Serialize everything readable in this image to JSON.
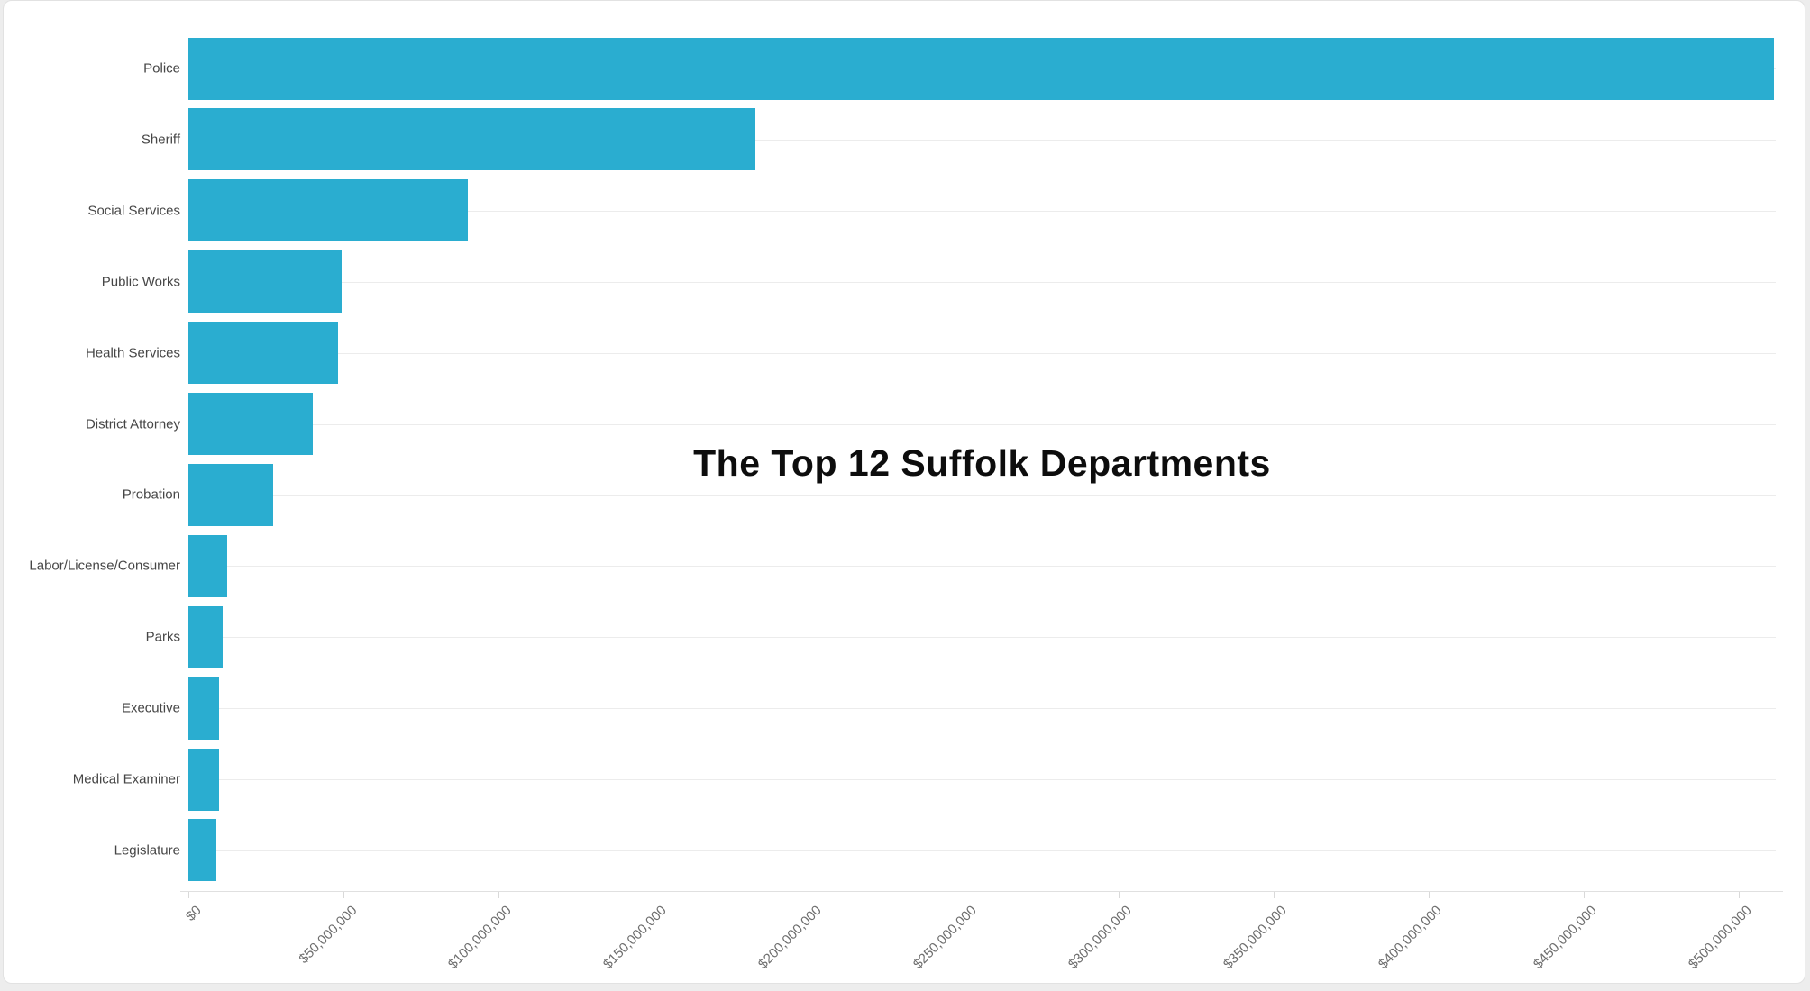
{
  "page": {
    "background_color": "#ededed",
    "card_background": "#ffffff",
    "card_border_color": "#e2e2e2"
  },
  "chart_data": {
    "type": "bar",
    "orientation": "horizontal",
    "title": "The Top 12 Suffolk Departments",
    "categories": [
      "Police",
      "Sheriff",
      "Social Services",
      "Public Works",
      "Health Services",
      "District Attorney",
      "Probation",
      "Labor/License/Consumer",
      "Parks",
      "Executive",
      "Medical Examiner",
      "Legislature"
    ],
    "values": [
      511500000,
      183000000,
      90000000,
      49500000,
      48300000,
      40000000,
      27300000,
      12500000,
      11000000,
      9900000,
      9800000,
      9000000
    ],
    "xlabel": "",
    "ylabel": "",
    "xlim": [
      0,
      512000000
    ],
    "x_ticks": [
      {
        "value": 0,
        "label": "$0"
      },
      {
        "value": 50000000,
        "label": "$50,000,000"
      },
      {
        "value": 100000000,
        "label": "$100,000,000"
      },
      {
        "value": 150000000,
        "label": "$150,000,000"
      },
      {
        "value": 200000000,
        "label": "$200,000,000"
      },
      {
        "value": 250000000,
        "label": "$250,000,000"
      },
      {
        "value": 300000000,
        "label": "$300,000,000"
      },
      {
        "value": 350000000,
        "label": "$350,000,000"
      },
      {
        "value": 400000000,
        "label": "$400,000,000"
      },
      {
        "value": 450000000,
        "label": "$450,000,000"
      },
      {
        "value": 500000000,
        "label": "$500,000,000"
      }
    ],
    "grid": true,
    "legend": "none",
    "bar_color": "#2aadd0",
    "gridline_color": "#ececec",
    "axis_line_color": "#e0e0e0",
    "tick_label_color": "#6d6d6d",
    "category_label_color": "#464646",
    "title_color": "#0d0d0d"
  }
}
